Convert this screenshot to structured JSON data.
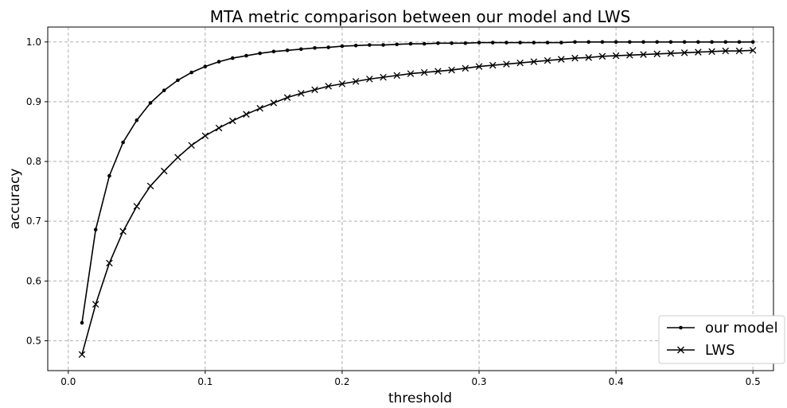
{
  "chart_data": {
    "type": "line",
    "title": "MTA metric comparison between our model and LWS",
    "xlabel": "threshold",
    "ylabel": "accuracy",
    "xlim": [
      -0.015,
      0.515
    ],
    "ylim": [
      0.45,
      1.025
    ],
    "xticks": [
      0.0,
      0.1,
      0.2,
      0.3,
      0.4,
      0.5
    ],
    "xtick_labels": [
      "0.0",
      "0.1",
      "0.2",
      "0.3",
      "0.4",
      "0.5"
    ],
    "yticks": [
      0.5,
      0.6,
      0.7,
      0.8,
      0.9,
      1.0
    ],
    "ytick_labels": [
      "0.5",
      "0.6",
      "0.7",
      "0.8",
      "0.9",
      "1.0"
    ],
    "grid": true,
    "legend_position": "lower-right",
    "x": [
      0.01,
      0.02,
      0.03,
      0.04,
      0.05,
      0.06,
      0.07,
      0.08,
      0.09,
      0.1,
      0.11,
      0.12,
      0.13,
      0.14,
      0.15,
      0.16,
      0.17,
      0.18,
      0.19,
      0.2,
      0.21,
      0.22,
      0.23,
      0.24,
      0.25,
      0.26,
      0.27,
      0.28,
      0.29,
      0.3,
      0.31,
      0.32,
      0.33,
      0.34,
      0.35,
      0.36,
      0.37,
      0.38,
      0.39,
      0.4,
      0.41,
      0.42,
      0.43,
      0.44,
      0.45,
      0.46,
      0.47,
      0.48,
      0.49,
      0.5
    ],
    "series": [
      {
        "name": "our model",
        "marker": "dot",
        "color": "#000000",
        "values": [
          0.53,
          0.686,
          0.776,
          0.832,
          0.869,
          0.898,
          0.919,
          0.936,
          0.949,
          0.959,
          0.967,
          0.973,
          0.977,
          0.981,
          0.984,
          0.986,
          0.988,
          0.99,
          0.991,
          0.993,
          0.994,
          0.995,
          0.995,
          0.996,
          0.997,
          0.997,
          0.998,
          0.998,
          0.998,
          0.999,
          0.999,
          0.999,
          0.999,
          0.999,
          0.999,
          0.999,
          1.0,
          1.0,
          1.0,
          1.0,
          1.0,
          1.0,
          1.0,
          1.0,
          1.0,
          1.0,
          1.0,
          1.0,
          1.0,
          1.0
        ]
      },
      {
        "name": "LWS",
        "marker": "x",
        "color": "#000000",
        "values": [
          0.477,
          0.561,
          0.63,
          0.683,
          0.725,
          0.759,
          0.784,
          0.807,
          0.827,
          0.843,
          0.856,
          0.868,
          0.879,
          0.889,
          0.898,
          0.907,
          0.914,
          0.92,
          0.926,
          0.93,
          0.934,
          0.938,
          0.941,
          0.944,
          0.947,
          0.949,
          0.951,
          0.953,
          0.956,
          0.959,
          0.961,
          0.963,
          0.965,
          0.967,
          0.969,
          0.971,
          0.973,
          0.974,
          0.976,
          0.977,
          0.978,
          0.979,
          0.98,
          0.981,
          0.982,
          0.983,
          0.984,
          0.985,
          0.985,
          0.986
        ]
      }
    ]
  }
}
